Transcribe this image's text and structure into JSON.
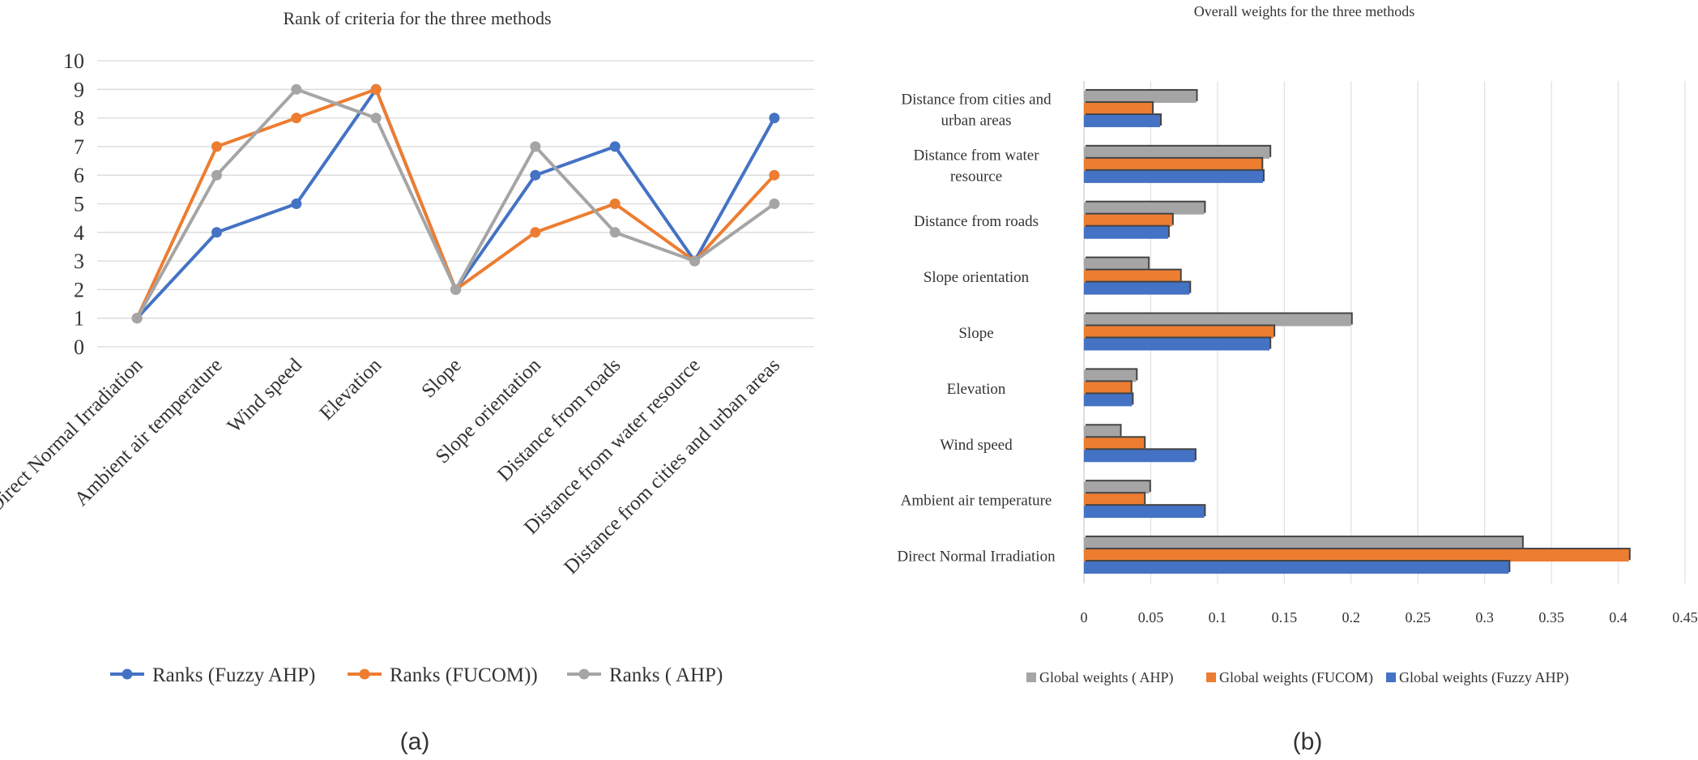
{
  "panel_labels": [
    "(a)",
    "(b)"
  ],
  "chart_data": [
    {
      "type": "line",
      "title": "Rank of criteria for the three methods",
      "categories": [
        "Direct Normal Irradiation",
        "Ambient air temperature",
        "Wind speed",
        "Elevation",
        "Slope",
        "Slope orientation",
        "Distance from roads",
        "Distance from water resource",
        "Distance from cities and urban areas"
      ],
      "series": [
        {
          "name": "Ranks (Fuzzy AHP)",
          "color": "#4472C4",
          "values": [
            1,
            4,
            5,
            9,
            2,
            6,
            7,
            3,
            8
          ]
        },
        {
          "name": "Ranks (FUCOM))",
          "color": "#ED7D31",
          "values": [
            1,
            7,
            8,
            9,
            2,
            4,
            5,
            3,
            6
          ]
        },
        {
          "name": "Ranks ( AHP)",
          "color": "#A5A5A5",
          "values": [
            1,
            6,
            9,
            8,
            2,
            7,
            4,
            3,
            5
          ]
        }
      ],
      "yticks": [
        "0",
        "1",
        "2",
        "3",
        "4",
        "5",
        "6",
        "7",
        "8",
        "9",
        "10"
      ],
      "ylim": [
        0,
        10
      ],
      "grid": true,
      "legend": "bottom",
      "xlabel": "",
      "ylabel": ""
    },
    {
      "type": "bar",
      "orientation": "horizontal",
      "title": "Overall weights for the three methods",
      "categories": [
        "Direct Normal Irradiation",
        "Ambient air temperature",
        "Wind speed",
        "Elevation",
        "Slope",
        "Slope orientation",
        "Distance from roads",
        "Distance from water resource",
        "Distance from cities and urban areas"
      ],
      "category_labels": [
        [
          "Direct Normal Irradiation"
        ],
        [
          "Ambient air temperature"
        ],
        [
          "Wind speed"
        ],
        [
          "Elevation"
        ],
        [
          "Slope"
        ],
        [
          "Slope orientation"
        ],
        [
          "Distance from roads"
        ],
        [
          "Distance from water",
          "resource"
        ],
        [
          "Distance from cities and",
          "urban areas"
        ]
      ],
      "series": [
        {
          "name": "Global weights (Fuzzy AHP)",
          "color": "#4472C4",
          "values": [
            0.318,
            0.09,
            0.083,
            0.036,
            0.139,
            0.079,
            0.063,
            0.134,
            0.057
          ]
        },
        {
          "name": "Global weights (FUCOM)",
          "color": "#ED7D31",
          "values": [
            0.408,
            0.045,
            0.045,
            0.035,
            0.142,
            0.072,
            0.066,
            0.133,
            0.051
          ]
        },
        {
          "name": "Global weights ( AHP)",
          "color": "#A5A5A5",
          "values": [
            0.328,
            0.049,
            0.027,
            0.039,
            0.2,
            0.048,
            0.09,
            0.139,
            0.084
          ]
        }
      ],
      "xticks": [
        "0",
        "0.05",
        "0.1",
        "0.15",
        "0.2",
        "0.25",
        "0.3",
        "0.35",
        "0.4",
        "0.45"
      ],
      "xlim": [
        0,
        0.45
      ],
      "grid": true,
      "legend": "bottom",
      "xlabel": "",
      "ylabel": ""
    }
  ]
}
